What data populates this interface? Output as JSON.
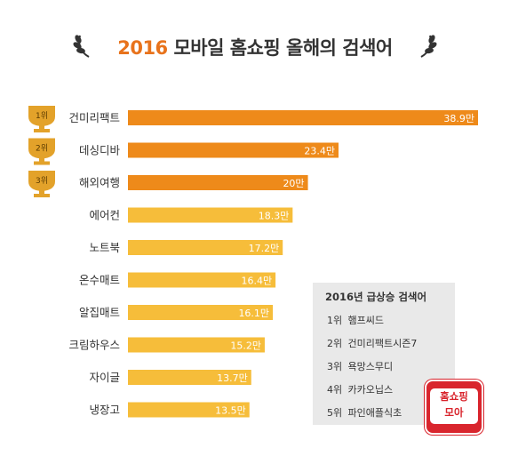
{
  "title": {
    "year": "2016",
    "text": "모바일 홈쇼핑 올해의 검색어"
  },
  "chart_data": {
    "type": "bar",
    "orientation": "horizontal",
    "categories": [
      "건미리팩트",
      "데싱디바",
      "해외여행",
      "에어컨",
      "노트북",
      "온수매트",
      "알집매트",
      "크림하우스",
      "자이글",
      "냉장고"
    ],
    "values": [
      38.9,
      23.4,
      20,
      18.3,
      17.2,
      16.4,
      16.1,
      15.2,
      13.7,
      13.5
    ],
    "value_labels": [
      "38.9만",
      "23.4만",
      "20만",
      "18.3만",
      "17.2만",
      "16.4만",
      "16.1만",
      "15.2만",
      "13.7만",
      "13.5만"
    ],
    "trophies": [
      "1위",
      "2위",
      "3위"
    ],
    "colors": {
      "top3": "#ee8a1a",
      "rest": "#f6bd3a",
      "trophy": "#e3a22a"
    }
  },
  "side_panel": {
    "title": "2016년 급상승 검색어",
    "items": [
      {
        "rank": "1위",
        "term": "햄프씨드"
      },
      {
        "rank": "2위",
        "term": "건미리팩트시즌7"
      },
      {
        "rank": "3위",
        "term": "욕망스무디"
      },
      {
        "rank": "4위",
        "term": "카카오닙스"
      },
      {
        "rank": "5위",
        "term": "파인애플식초"
      }
    ]
  },
  "logo": {
    "line1": "홈쇼핑",
    "line2": "모아"
  }
}
